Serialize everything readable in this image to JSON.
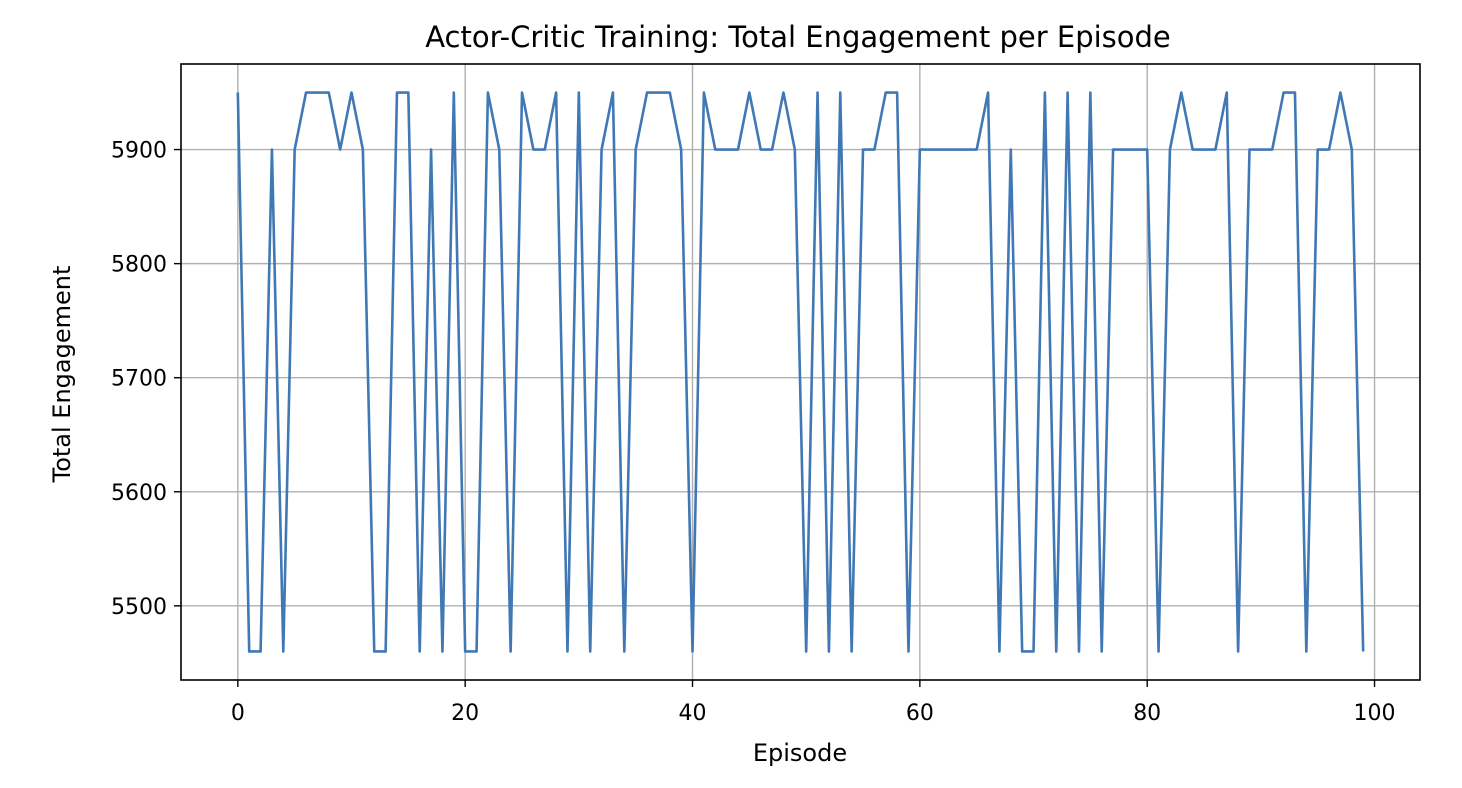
{
  "chart_data": {
    "type": "line",
    "title": "Actor-Critic Training: Total Engagement per Episode",
    "xlabel": "Episode",
    "ylabel": "Total Engagement",
    "xlim": [
      -5,
      104
    ],
    "ylim": [
      5435,
      5975
    ],
    "xticks": [
      0,
      20,
      40,
      60,
      80,
      100
    ],
    "yticks": [
      5500,
      5600,
      5700,
      5800,
      5900
    ],
    "grid": true,
    "legend": "none",
    "series": [
      {
        "color": "#4078b5",
        "x": [
          0,
          1,
          2,
          3,
          4,
          5,
          6,
          7,
          8,
          9,
          10,
          11,
          12,
          13,
          14,
          15,
          16,
          17,
          18,
          19,
          20,
          21,
          22,
          23,
          24,
          25,
          26,
          27,
          28,
          29,
          30,
          31,
          32,
          33,
          34,
          35,
          36,
          37,
          38,
          39,
          40,
          41,
          42,
          43,
          44,
          45,
          46,
          47,
          48,
          49,
          50,
          51,
          52,
          53,
          54,
          55,
          56,
          57,
          58,
          59,
          60,
          61,
          62,
          63,
          64,
          65,
          66,
          67,
          68,
          69,
          70,
          71,
          72,
          73,
          74,
          75,
          76,
          77,
          78,
          79,
          80,
          81,
          82,
          83,
          84,
          85,
          86,
          87,
          88,
          89,
          90,
          91,
          92,
          93,
          94,
          95,
          96,
          97,
          98,
          99
        ],
        "values": [
          5950,
          5460,
          5460,
          5900,
          5460,
          5900,
          5950,
          5950,
          5950,
          5900,
          5950,
          5900,
          5460,
          5460,
          5950,
          5950,
          5460,
          5900,
          5460,
          5950,
          5460,
          5460,
          5950,
          5900,
          5460,
          5950,
          5900,
          5900,
          5950,
          5460,
          5950,
          5460,
          5900,
          5950,
          5460,
          5900,
          5950,
          5950,
          5950,
          5900,
          5460,
          5950,
          5900,
          5900,
          5900,
          5950,
          5900,
          5900,
          5950,
          5900,
          5460,
          5950,
          5460,
          5950,
          5460,
          5900,
          5900,
          5950,
          5950,
          5460,
          5900,
          5900,
          5900,
          5900,
          5900,
          5900,
          5950,
          5460,
          5900,
          5460,
          5460,
          5950,
          5460,
          5950,
          5460,
          5950,
          5460,
          5900,
          5900,
          5900,
          5900,
          5460,
          5900,
          5950,
          5900,
          5900,
          5900,
          5950,
          5460,
          5900,
          5900,
          5900,
          5950,
          5950,
          5460,
          5900,
          5900,
          5950,
          5900,
          5460
        ]
      }
    ]
  }
}
